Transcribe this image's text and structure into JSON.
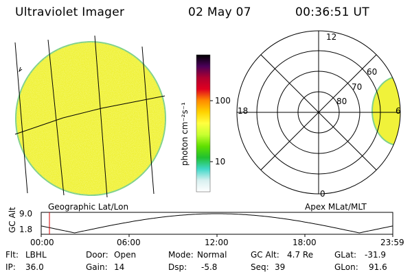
{
  "header": {
    "instrument": "Ultraviolet Imager",
    "date": "02 May 07",
    "time": "00:36:51 UT"
  },
  "colors": {
    "disk_fill": "#f0f23a",
    "disk_edge": "#7ed08a",
    "plot_line": "#000000",
    "marker": "#d00000"
  },
  "colorbar": {
    "unit_label": "photon cm⁻²s⁻¹",
    "ticks": [
      "100",
      "10"
    ],
    "scale": "log",
    "color_stops": [
      "#000000",
      "#4a0058",
      "#b00030",
      "#e00020",
      "#ff8a00",
      "#ffd200",
      "#ffff40",
      "#c8ff30",
      "#60e000",
      "#20c030",
      "#40d8c8",
      "#d8f0f0",
      "#ffffff"
    ]
  },
  "left_panel": {
    "label": "Geographic Lat/Lon"
  },
  "right_panel": {
    "label": "Apex MLat/MLT",
    "lat_labels": [
      "60",
      "70",
      "80"
    ],
    "mlt_labels": {
      "top": "12",
      "left": "18",
      "right": "6",
      "bottom": "0"
    }
  },
  "altitude_plot": {
    "ylabel": "GC Alt",
    "yticks": [
      "9.0",
      "1.8"
    ],
    "xticks": [
      "00:00",
      "06:00",
      "12:00",
      "18:00",
      "23:59"
    ]
  },
  "footer": {
    "row1": [
      {
        "label": "Flt:",
        "value": "LBHL"
      },
      {
        "label": "Door:",
        "value": "Open"
      },
      {
        "label": "Mode:",
        "value": "Normal"
      },
      {
        "label": "GC Alt:",
        "value": "4.7 Re"
      },
      {
        "label": "GLat:",
        "value": "-31.9"
      }
    ],
    "row2": [
      {
        "label": "IP:",
        "value": "36.0"
      },
      {
        "label": "Gain:",
        "value": "14"
      },
      {
        "label": "Dsp:",
        "value": "-5.8"
      },
      {
        "label": "Seq:",
        "value": "39"
      },
      {
        "label": "GLon:",
        "value": "91.6"
      }
    ]
  }
}
